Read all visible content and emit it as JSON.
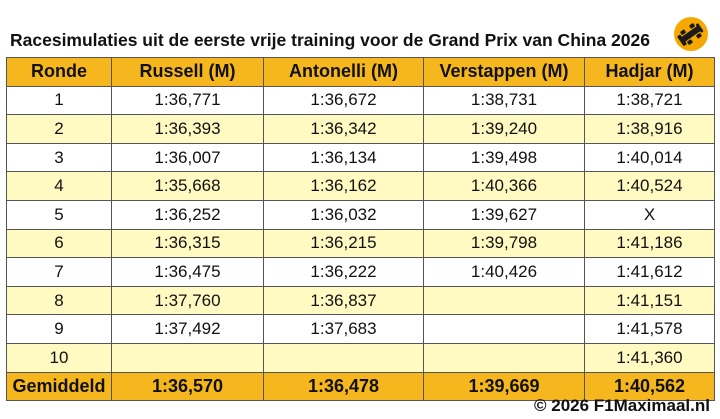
{
  "title": "Racesimulaties uit de eerste vrije training voor de Grand Prix van China 2026",
  "logo_icon": "f1maximaal-logo-icon",
  "colors": {
    "header": "#F5B71D",
    "stripe": "#FFF9C2",
    "logo": "#F5A800"
  },
  "columns": [
    "Ronde",
    "Russell (M)",
    "Antonelli (M)",
    "Verstappen (M)",
    "Hadjar (M)"
  ],
  "rows": [
    [
      "1",
      "1:36,771",
      "1:36,672",
      "1:38,731",
      "1:38,721"
    ],
    [
      "2",
      "1:36,393",
      "1:36,342",
      "1:39,240",
      "1:38,916"
    ],
    [
      "3",
      "1:36,007",
      "1:36,134",
      "1:39,498",
      "1:40,014"
    ],
    [
      "4",
      "1:35,668",
      "1:36,162",
      "1:40,366",
      "1:40,524"
    ],
    [
      "5",
      "1:36,252",
      "1:36,032",
      "1:39,627",
      "X"
    ],
    [
      "6",
      "1:36,315",
      "1:36,215",
      "1:39,798",
      "1:41,186"
    ],
    [
      "7",
      "1:36,475",
      "1:36,222",
      "1:40,426",
      "1:41,612"
    ],
    [
      "8",
      "1:37,760",
      "1:36,837",
      "",
      "1:41,151"
    ],
    [
      "9",
      "1:37,492",
      "1:37,683",
      "",
      "1:41,578"
    ],
    [
      "10",
      "",
      "",
      "",
      "1:41,360"
    ]
  ],
  "average": [
    "Gemiddeld",
    "1:36,570",
    "1:36,478",
    "1:39,669",
    "1:40,562"
  ],
  "footer": "© 2026 F1Maximaal.nl"
}
